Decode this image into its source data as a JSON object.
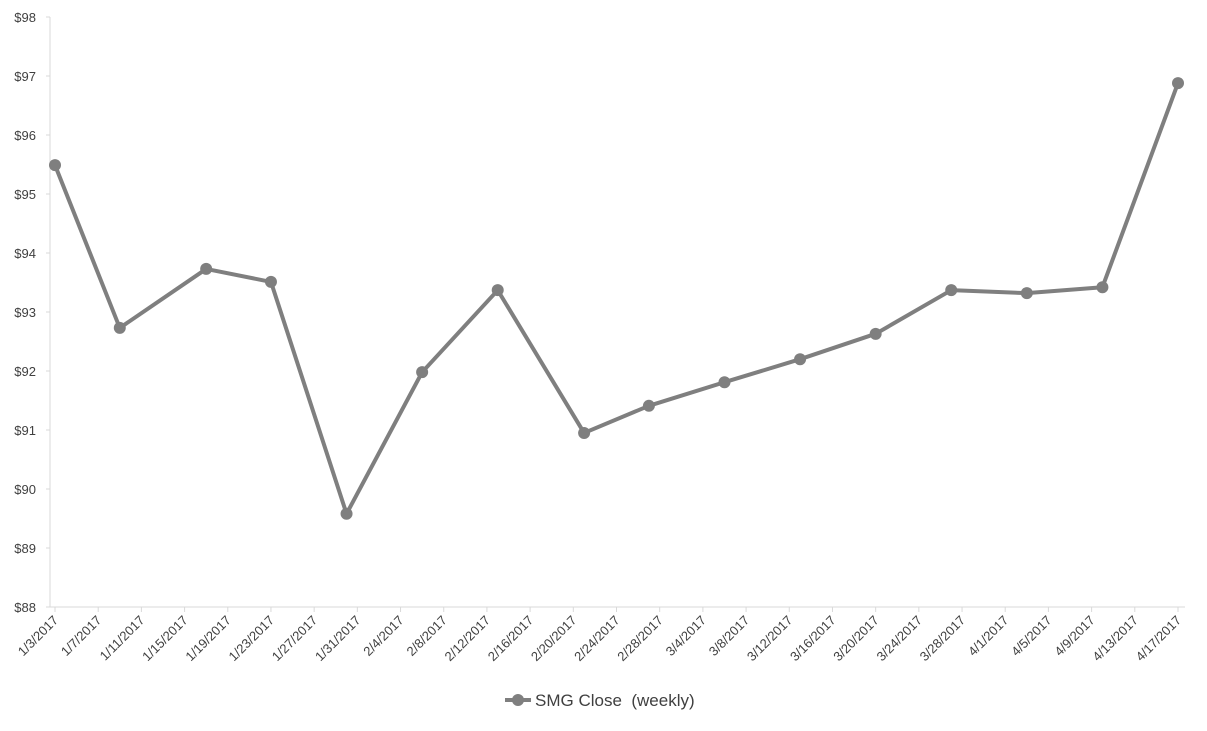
{
  "chart_data": {
    "type": "line",
    "x": [
      "1/3/2017",
      "1/9/2017",
      "1/17/2017",
      "1/23/2017",
      "1/30/2017",
      "2/6/2017",
      "2/13/2017",
      "2/21/2017",
      "2/27/2017",
      "3/6/2017",
      "3/13/2017",
      "3/20/2017",
      "3/27/2017",
      "4/3/2017",
      "4/10/2017",
      "4/17/2017"
    ],
    "series": [
      {
        "name": "SMG Close  (weekly)",
        "color": "#7f7f7f",
        "values": [
          95.49,
          92.73,
          93.73,
          93.51,
          89.58,
          91.98,
          93.37,
          90.95,
          91.41,
          91.81,
          92.2,
          92.63,
          93.37,
          93.32,
          93.42,
          96.88
        ]
      }
    ],
    "xlim": [
      "1/3/2017",
      "4/17/2017"
    ],
    "xticks": [
      "1/3/2017",
      "1/7/2017",
      "1/11/2017",
      "1/15/2017",
      "1/19/2017",
      "1/23/2017",
      "1/27/2017",
      "1/31/2017",
      "2/4/2017",
      "2/8/2017",
      "2/12/2017",
      "2/16/2017",
      "2/20/2017",
      "2/24/2017",
      "2/28/2017",
      "3/4/2017",
      "3/8/2017",
      "3/12/2017",
      "3/16/2017",
      "3/20/2017",
      "3/24/2017",
      "3/28/2017",
      "4/1/2017",
      "4/5/2017",
      "4/9/2017",
      "4/13/2017",
      "4/17/2017"
    ],
    "ylim": [
      88,
      98
    ],
    "yticks": [
      {
        "value": 88,
        "label": "$88"
      },
      {
        "value": 89,
        "label": "$89"
      },
      {
        "value": 90,
        "label": "$90"
      },
      {
        "value": 91,
        "label": "$91"
      },
      {
        "value": 92,
        "label": "$92"
      },
      {
        "value": 93,
        "label": "$93"
      },
      {
        "value": 94,
        "label": "$94"
      },
      {
        "value": 95,
        "label": "$95"
      },
      {
        "value": 96,
        "label": "$96"
      },
      {
        "value": 97,
        "label": "$97"
      },
      {
        "value": 98,
        "label": "$98"
      }
    ],
    "grid": false,
    "legend": "bottom"
  }
}
